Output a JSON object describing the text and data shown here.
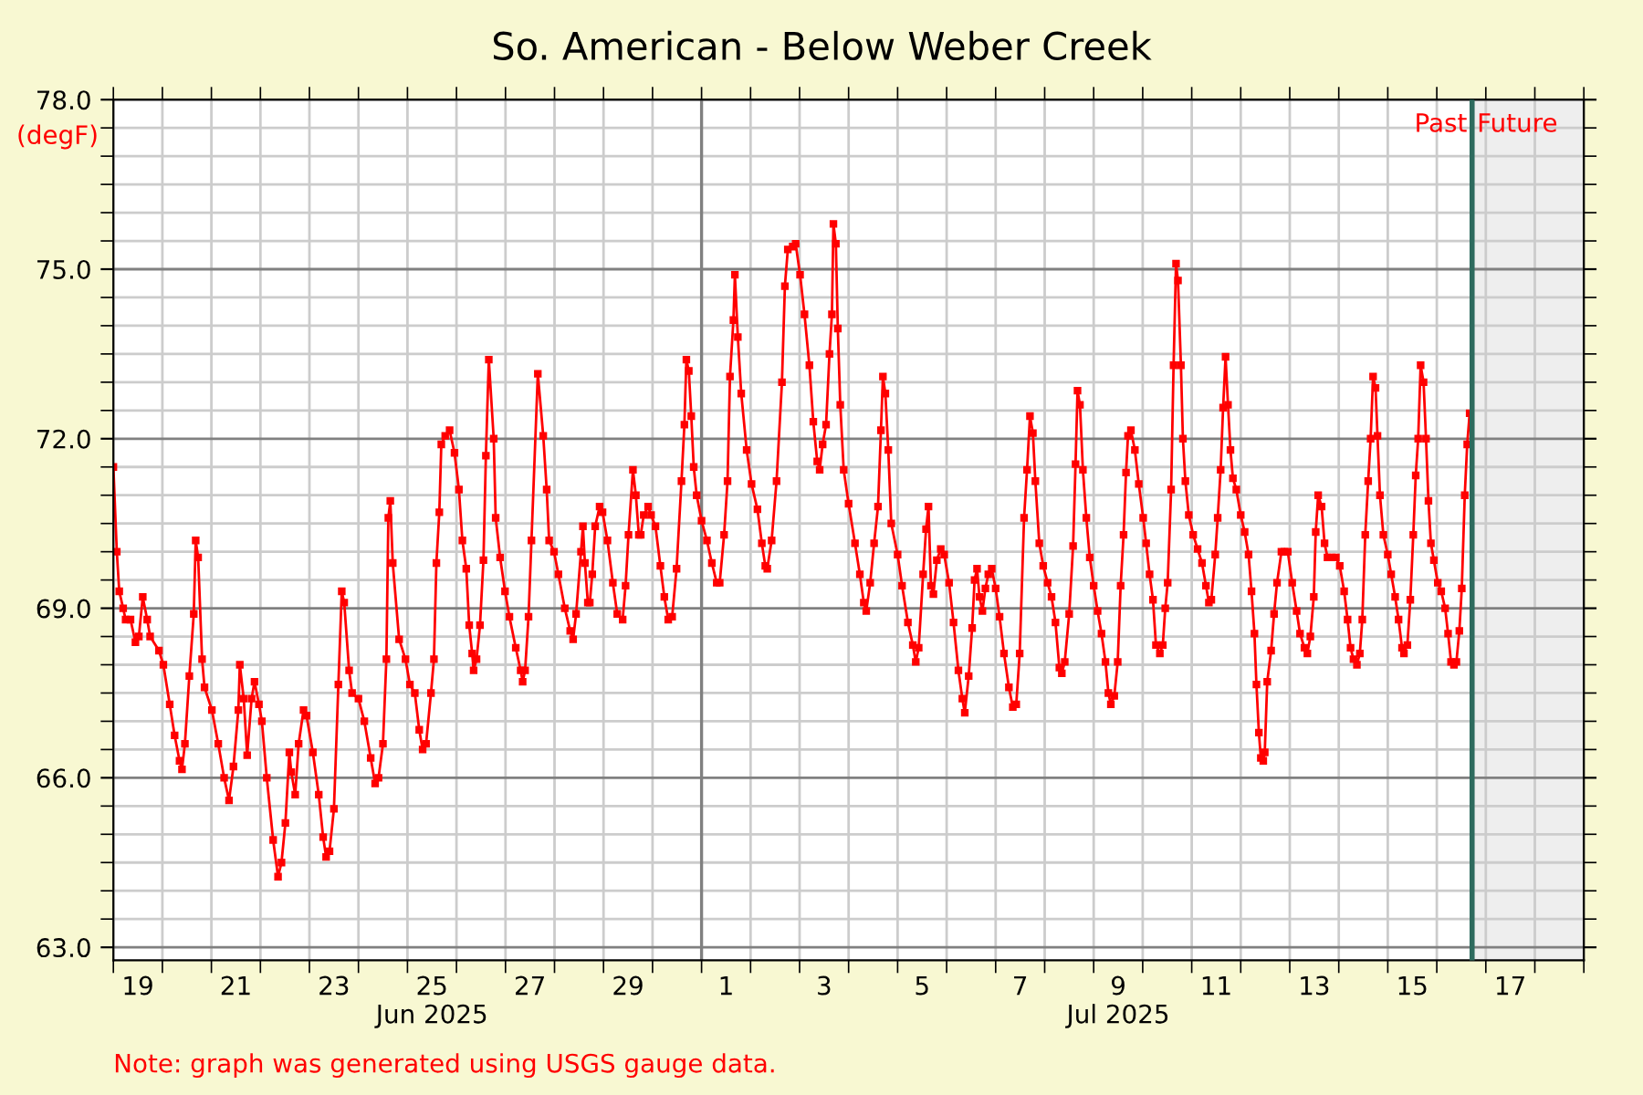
{
  "chart_data": {
    "type": "line",
    "title": "So. American - Below Weber Creek",
    "ylabel": "(degF)",
    "annotations": [
      "Note: graph was generated using USGS gauge data."
    ],
    "marker": "square",
    "line_style": "solid",
    "grid": true,
    "xlim": [
      "2025-06-19",
      "2025-07-19"
    ],
    "ylim": [
      62.77,
      78
    ],
    "xticks": [
      {
        "value": "2025-06-19",
        "label": null
      },
      {
        "value": "2025-06-20",
        "label": null
      },
      {
        "value": "2025-06-21",
        "label": null
      },
      {
        "value": "2025-06-22",
        "label": null
      },
      {
        "value": "2025-06-23",
        "label": null
      },
      {
        "value": "2025-06-24",
        "label": null
      },
      {
        "value": "2025-06-25",
        "label": null
      },
      {
        "value": "2025-06-26",
        "label": null
      },
      {
        "value": "2025-06-27",
        "label": null
      },
      {
        "value": "2025-06-28",
        "label": null
      },
      {
        "value": "2025-06-29",
        "label": null
      },
      {
        "value": "2025-06-30",
        "label": null
      },
      {
        "value": "2025-07-01",
        "label": null
      },
      {
        "value": "2025-07-02",
        "label": null
      },
      {
        "value": "2025-07-03",
        "label": null
      },
      {
        "value": "2025-07-04",
        "label": null
      },
      {
        "value": "2025-07-05",
        "label": null
      },
      {
        "value": "2025-07-06",
        "label": null
      },
      {
        "value": "2025-07-07",
        "label": null
      },
      {
        "value": "2025-07-08",
        "label": null
      },
      {
        "value": "2025-07-09",
        "label": null
      },
      {
        "value": "2025-07-10",
        "label": null
      },
      {
        "value": "2025-07-11",
        "label": null
      },
      {
        "value": "2025-07-12",
        "label": null
      },
      {
        "value": "2025-07-13",
        "label": null
      },
      {
        "value": "2025-07-14",
        "label": null
      },
      {
        "value": "2025-07-15",
        "label": null
      },
      {
        "value": "2025-07-16",
        "label": null
      },
      {
        "value": "2025-07-17",
        "label": null
      },
      {
        "value": "2025-07-18",
        "label": null
      },
      {
        "value": "2025-07-19",
        "label": null
      },
      {
        "value": "2025-06-19T12:00",
        "label": "19"
      },
      {
        "value": "2025-06-21T12:00",
        "label": "21"
      },
      {
        "value": "2025-06-23T12:00",
        "label": "23"
      },
      {
        "value": "2025-06-25T12:00",
        "label": "25\nJun 2025"
      },
      {
        "value": "2025-06-27T12:00",
        "label": "27"
      },
      {
        "value": "2025-06-29T12:00",
        "label": "29"
      },
      {
        "value": "2025-07-01T12:00",
        "label": "1"
      },
      {
        "value": "2025-07-03T12:00",
        "label": "3"
      },
      {
        "value": "2025-07-05T12:00",
        "label": "5"
      },
      {
        "value": "2025-07-07T12:00",
        "label": "7"
      },
      {
        "value": "2025-07-09T12:00",
        "label": "9\nJul 2025"
      },
      {
        "value": "2025-07-11T12:00",
        "label": "11"
      },
      {
        "value": "2025-07-13T12:00",
        "label": "13"
      },
      {
        "value": "2025-07-15T12:00",
        "label": "15"
      },
      {
        "value": "2025-07-17T12:00",
        "label": "17"
      }
    ],
    "yticks": [
      {
        "value": 63,
        "label": "63.0"
      },
      {
        "value": 63.5,
        "label": null
      },
      {
        "value": 64,
        "label": null
      },
      {
        "value": 64.5,
        "label": null
      },
      {
        "value": 65,
        "label": null
      },
      {
        "value": 65.5,
        "label": null
      },
      {
        "value": 66,
        "label": "66.0"
      },
      {
        "value": 66.5,
        "label": null
      },
      {
        "value": 67,
        "label": null
      },
      {
        "value": 67.5,
        "label": null
      },
      {
        "value": 68,
        "label": null
      },
      {
        "value": 68.5,
        "label": null
      },
      {
        "value": 69,
        "label": "69.0"
      },
      {
        "value": 69.5,
        "label": null
      },
      {
        "value": 70,
        "label": null
      },
      {
        "value": 70.5,
        "label": null
      },
      {
        "value": 71,
        "label": null
      },
      {
        "value": 71.5,
        "label": null
      },
      {
        "value": 72,
        "label": "72.0"
      },
      {
        "value": 72.5,
        "label": null
      },
      {
        "value": 73,
        "label": null
      },
      {
        "value": 73.5,
        "label": null
      },
      {
        "value": 74,
        "label": null
      },
      {
        "value": 74.5,
        "label": null
      },
      {
        "value": 75,
        "label": "75.0"
      },
      {
        "value": 75.5,
        "label": null
      },
      {
        "value": 76,
        "label": null
      },
      {
        "value": 76.5,
        "label": null
      },
      {
        "value": 77,
        "label": null
      },
      {
        "value": 77.5,
        "label": null
      },
      {
        "value": 78,
        "label": "78.0"
      }
    ],
    "ref_lines": [
      {
        "axis": "x",
        "value": "2025-07-01",
        "color": "#808080"
      },
      {
        "axis": "x",
        "value": "2025-07-16T17:17",
        "label": "Past",
        "color": "#2e6b5e"
      }
    ],
    "bands": [
      {
        "axis": "x",
        "from": "2025-07-16T17:17",
        "to": "2025-07-19",
        "label": "Future",
        "color": "#eeeeee"
      }
    ],
    "series": [
      {
        "color": "#ff0000",
        "x": [
          "2025-06-19T00:00",
          "2025-06-19T01:41",
          "2025-06-19T02:53",
          "2025-06-19T04:48",
          "2025-06-19T06:00",
          "2025-06-19T08:24",
          "2025-06-19T10:48",
          "2025-06-19T12:29",
          "2025-06-19T14:24",
          "2025-06-19T16:34",
          "2025-06-19T18:00",
          "2025-06-19T22:19",
          "2025-06-20T00:29",
          "2025-06-20T03:36",
          "2025-06-20T06:00",
          "2025-06-20T08:24",
          "2025-06-20T09:36",
          "2025-06-20T11:02",
          "2025-06-20T13:12",
          "2025-06-20T15:22",
          "2025-06-20T16:19",
          "2025-06-20T17:31",
          "2025-06-20T19:26",
          "2025-06-20T20:38",
          "2025-06-21T00:14",
          "2025-06-21T03:22",
          "2025-06-21T06:14",
          "2025-06-21T08:38",
          "2025-06-21T10:48",
          "2025-06-21T13:12",
          "2025-06-21T13:55",
          "2025-06-21T15:50",
          "2025-06-21T17:31",
          "2025-06-21T19:41",
          "2025-06-21T21:07",
          "2025-06-21T23:17",
          "2025-06-22T00:43",
          "2025-06-22T03:07",
          "2025-06-22T06:14",
          "2025-06-22T08:38",
          "2025-06-22T10:19",
          "2025-06-22T12:14",
          "2025-06-22T14:10",
          "2025-06-22T15:07",
          "2025-06-22T17:02",
          "2025-06-22T18:43",
          "2025-06-22T21:07",
          "2025-06-22T22:34",
          "2025-06-23T01:41",
          "2025-06-23T04:34",
          "2025-06-23T06:43",
          "2025-06-23T08:10",
          "2025-06-23T09:50",
          "2025-06-23T12:00",
          "2025-06-23T14:10",
          "2025-06-23T15:50",
          "2025-06-23T17:02",
          "2025-06-23T19:26",
          "2025-06-23T20:53",
          "2025-06-24T00:00",
          "2025-06-24T02:53",
          "2025-06-24T06:00",
          "2025-06-24T08:10",
          "2025-06-24T09:50",
          "2025-06-24T12:00",
          "2025-06-24T13:41",
          "2025-06-24T14:38",
          "2025-06-24T15:36",
          "2025-06-24T16:48",
          "2025-06-24T19:55",
          "2025-06-24T23:02",
          "2025-06-25T01:12",
          "2025-06-25T03:36",
          "2025-06-25T05:46",
          "2025-06-25T07:26",
          "2025-06-25T09:07",
          "2025-06-25T11:31",
          "2025-06-25T12:58",
          "2025-06-25T14:10",
          "2025-06-25T15:36",
          "2025-06-25T16:34",
          "2025-06-25T18:29",
          "2025-06-25T20:38",
          "2025-06-25T23:02",
          "2025-06-26T01:12",
          "2025-06-26T02:53",
          "2025-06-26T04:48",
          "2025-06-26T06:14",
          "2025-06-26T07:41",
          "2025-06-26T08:24",
          "2025-06-26T09:50",
          "2025-06-26T11:31",
          "2025-06-26T13:12",
          "2025-06-26T14:24",
          "2025-06-26T15:50",
          "2025-06-26T18:14",
          "2025-06-26T19:12",
          "2025-06-26T21:22",
          "2025-06-26T23:46",
          "2025-06-27T01:55",
          "2025-06-27T05:02",
          "2025-06-27T07:26",
          "2025-06-27T08:24",
          "2025-06-27T09:36",
          "2025-06-27T11:17",
          "2025-06-27T12:43",
          "2025-06-27T15:50",
          "2025-06-27T18:29",
          "2025-06-27T20:10",
          "2025-06-27T21:22",
          "2025-06-27T23:46",
          "2025-06-28T01:55",
          "2025-06-28T05:02",
          "2025-06-28T07:41",
          "2025-06-28T09:07",
          "2025-06-28T10:34",
          "2025-06-28T12:58",
          "2025-06-28T13:55",
          "2025-06-28T14:53",
          "2025-06-28T16:19",
          "2025-06-28T17:17",
          "2025-06-28T18:29",
          "2025-06-28T19:55",
          "2025-06-28T22:05",
          "2025-06-28T23:31",
          "2025-06-29T01:55",
          "2025-06-29T04:34",
          "2025-06-29T06:43",
          "2025-06-29T09:22",
          "2025-06-29T10:48",
          "2025-06-29T12:14",
          "2025-06-29T14:24",
          "2025-06-29T15:50",
          "2025-06-29T17:17",
          "2025-06-29T18:14",
          "2025-06-29T19:41",
          "2025-06-29T21:50",
          "2025-06-29T23:17",
          "2025-06-30T01:26",
          "2025-06-30T03:50",
          "2025-06-30T05:46",
          "2025-06-30T07:41",
          "2025-06-30T09:36",
          "2025-06-30T11:46",
          "2025-06-30T14:10",
          "2025-06-30T15:36",
          "2025-06-30T16:34",
          "2025-06-30T17:46",
          "2025-06-30T18:58",
          "2025-06-30T20:10",
          "2025-06-30T21:36",
          "2025-07-01T00:00",
          "2025-07-01T02:38",
          "2025-07-01T05:02",
          "2025-07-01T07:26",
          "2025-07-01T08:53",
          "2025-07-01T11:02",
          "2025-07-01T12:43",
          "2025-07-01T13:55",
          "2025-07-01T15:36",
          "2025-07-01T16:19",
          "2025-07-01T17:46",
          "2025-07-01T19:26",
          "2025-07-01T22:05",
          "2025-07-02T00:29",
          "2025-07-02T03:22",
          "2025-07-02T05:31",
          "2025-07-02T07:12",
          "2025-07-02T08:10",
          "2025-07-02T10:19",
          "2025-07-02T12:43",
          "2025-07-02T15:22",
          "2025-07-02T16:48",
          "2025-07-02T18:14",
          "2025-07-02T20:38",
          "2025-07-02T22:05",
          "2025-07-03T00:14",
          "2025-07-03T02:24",
          "2025-07-03T04:48",
          "2025-07-03T06:43",
          "2025-07-03T08:38",
          "2025-07-03T09:50",
          "2025-07-03T11:17",
          "2025-07-03T12:58",
          "2025-07-03T14:38",
          "2025-07-03T15:50",
          "2025-07-03T16:34",
          "2025-07-03T17:46",
          "2025-07-03T18:43",
          "2025-07-03T19:55",
          "2025-07-03T21:36",
          "2025-07-04T00:00",
          "2025-07-04T03:07",
          "2025-07-04T05:31",
          "2025-07-04T07:26",
          "2025-07-04T08:38",
          "2025-07-04T10:34",
          "2025-07-04T12:29",
          "2025-07-04T14:24",
          "2025-07-04T15:50",
          "2025-07-04T16:48",
          "2025-07-04T18:00",
          "2025-07-04T19:26",
          "2025-07-04T20:53",
          "2025-07-05T00:00",
          "2025-07-05T02:10",
          "2025-07-05T05:02",
          "2025-07-05T07:26",
          "2025-07-05T08:53",
          "2025-07-05T10:19",
          "2025-07-05T12:29",
          "2025-07-05T13:55",
          "2025-07-05T15:07",
          "2025-07-05T16:19",
          "2025-07-05T17:31",
          "2025-07-05T19:12",
          "2025-07-05T21:07",
          "2025-07-05T22:48",
          "2025-07-06T01:12",
          "2025-07-06T03:22",
          "2025-07-06T05:46",
          "2025-07-06T07:41",
          "2025-07-06T08:53",
          "2025-07-06T10:48",
          "2025-07-06T12:29",
          "2025-07-06T13:41",
          "2025-07-06T14:53",
          "2025-07-06T16:05",
          "2025-07-06T17:31",
          "2025-07-06T18:58",
          "2025-07-06T20:24",
          "2025-07-06T22:05",
          "2025-07-07T00:00",
          "2025-07-07T01:55",
          "2025-07-07T04:05",
          "2025-07-07T06:29",
          "2025-07-07T08:24",
          "2025-07-07T10:05",
          "2025-07-07T11:46",
          "2025-07-07T13:55",
          "2025-07-07T15:22",
          "2025-07-07T16:48",
          "2025-07-07T18:14",
          "2025-07-07T19:26",
          "2025-07-07T21:22",
          "2025-07-07T23:17",
          "2025-07-08T01:26",
          "2025-07-08T03:22",
          "2025-07-08T05:17",
          "2025-07-08T07:12",
          "2025-07-08T08:24",
          "2025-07-08T09:50",
          "2025-07-08T12:00",
          "2025-07-08T13:55",
          "2025-07-08T15:07",
          "2025-07-08T16:05",
          "2025-07-08T17:17",
          "2025-07-08T18:43",
          "2025-07-08T20:24",
          "2025-07-08T22:05",
          "2025-07-09T00:00",
          "2025-07-09T01:55",
          "2025-07-09T03:50",
          "2025-07-09T05:46",
          "2025-07-09T07:12",
          "2025-07-09T08:24",
          "2025-07-09T10:05",
          "2025-07-09T11:46",
          "2025-07-09T13:12",
          "2025-07-09T14:38",
          "2025-07-09T15:50",
          "2025-07-09T16:48",
          "2025-07-09T18:14",
          "2025-07-09T20:10",
          "2025-07-09T22:05",
          "2025-07-10T00:14",
          "2025-07-10T01:41",
          "2025-07-10T03:22",
          "2025-07-10T05:02",
          "2025-07-10T06:29",
          "2025-07-10T08:24",
          "2025-07-10T09:50",
          "2025-07-10T11:02",
          "2025-07-10T12:14",
          "2025-07-10T13:55",
          "2025-07-10T15:07",
          "2025-07-10T16:19",
          "2025-07-10T17:17",
          "2025-07-10T18:43",
          "2025-07-10T19:41",
          "2025-07-10T20:53",
          "2025-07-10T22:34",
          "2025-07-11T00:43",
          "2025-07-11T02:53",
          "2025-07-11T05:02",
          "2025-07-11T06:58",
          "2025-07-11T08:24",
          "2025-07-11T09:36",
          "2025-07-11T11:31",
          "2025-07-11T12:43",
          "2025-07-11T14:10",
          "2025-07-11T15:22",
          "2025-07-11T16:34",
          "2025-07-11T17:46",
          "2025-07-11T18:58",
          "2025-07-11T20:10",
          "2025-07-11T21:50",
          "2025-07-12T00:00",
          "2025-07-12T01:55",
          "2025-07-12T03:50",
          "2025-07-12T05:17",
          "2025-07-12T06:43",
          "2025-07-12T07:41",
          "2025-07-12T08:53",
          "2025-07-12T09:50",
          "2025-07-12T11:02",
          "2025-07-12T11:46",
          "2025-07-12T12:58",
          "2025-07-12T14:53",
          "2025-07-12T16:19",
          "2025-07-12T17:46",
          "2025-07-12T19:55",
          "2025-07-12T21:22",
          "2025-07-12T23:02",
          "2025-07-13T01:12",
          "2025-07-13T03:22",
          "2025-07-13T05:02",
          "2025-07-13T07:12",
          "2025-07-13T08:38",
          "2025-07-13T10:05",
          "2025-07-13T11:46",
          "2025-07-13T12:43",
          "2025-07-13T13:55",
          "2025-07-13T15:36",
          "2025-07-13T17:02",
          "2025-07-13T18:29",
          "2025-07-13T20:38",
          "2025-07-13T22:34",
          "2025-07-14T00:29",
          "2025-07-14T02:38",
          "2025-07-14T04:19",
          "2025-07-14T05:46",
          "2025-07-14T07:12",
          "2025-07-14T08:53",
          "2025-07-14T10:19",
          "2025-07-14T11:31",
          "2025-07-14T12:58",
          "2025-07-14T14:24",
          "2025-07-14T15:36",
          "2025-07-14T16:48",
          "2025-07-14T18:00",
          "2025-07-14T18:58",
          "2025-07-14T20:10",
          "2025-07-14T21:50",
          "2025-07-15T00:00",
          "2025-07-15T01:41",
          "2025-07-15T03:36",
          "2025-07-15T05:17",
          "2025-07-15T06:58",
          "2025-07-15T07:55",
          "2025-07-15T09:36",
          "2025-07-15T11:02",
          "2025-07-15T12:29",
          "2025-07-15T13:41",
          "2025-07-15T14:53",
          "2025-07-15T16:05",
          "2025-07-15T17:31",
          "2025-07-15T18:43",
          "2025-07-15T19:55",
          "2025-07-15T21:07",
          "2025-07-15T22:34",
          "2025-07-16T00:29",
          "2025-07-16T02:10",
          "2025-07-16T04:05",
          "2025-07-16T05:31",
          "2025-07-16T06:58",
          "2025-07-16T08:24",
          "2025-07-16T09:36",
          "2025-07-16T11:02",
          "2025-07-16T12:14",
          "2025-07-16T13:41",
          "2025-07-16T14:53",
          "2025-07-16T16:05"
        ],
        "values": [
          71.5,
          70.0,
          69.3,
          69.0,
          68.8,
          68.8,
          68.4,
          68.5,
          69.2,
          68.8,
          68.5,
          68.25,
          68.0,
          67.3,
          66.75,
          66.3,
          66.15,
          66.6,
          67.8,
          68.9,
          70.2,
          69.9,
          68.1,
          67.6,
          67.2,
          66.6,
          66.0,
          65.6,
          66.2,
          67.2,
          68.0,
          67.4,
          66.4,
          67.4,
          67.7,
          67.3,
          67.0,
          66.0,
          64.9,
          64.25,
          64.5,
          65.2,
          66.45,
          66.1,
          65.7,
          66.6,
          67.2,
          67.1,
          66.45,
          65.7,
          64.95,
          64.6,
          64.7,
          65.45,
          67.65,
          69.3,
          69.1,
          67.9,
          67.5,
          67.4,
          67.0,
          66.35,
          65.9,
          66.0,
          66.6,
          68.1,
          70.6,
          70.9,
          69.8,
          68.45,
          68.1,
          67.65,
          67.5,
          66.85,
          66.5,
          66.6,
          67.5,
          68.1,
          69.8,
          70.7,
          71.9,
          72.05,
          72.15,
          71.75,
          71.1,
          70.2,
          69.7,
          68.7,
          68.2,
          67.9,
          68.1,
          68.7,
          69.85,
          71.7,
          73.4,
          72.0,
          70.6,
          69.9,
          69.3,
          68.85,
          68.3,
          67.9,
          67.7,
          67.9,
          68.85,
          70.2,
          73.15,
          72.05,
          71.1,
          70.2,
          70.0,
          69.6,
          69.0,
          68.6,
          68.45,
          68.9,
          70.0,
          70.45,
          69.8,
          69.1,
          69.1,
          69.6,
          70.45,
          70.8,
          70.7,
          70.2,
          69.45,
          68.9,
          68.8,
          69.4,
          70.3,
          71.45,
          71.0,
          70.3,
          70.3,
          70.65,
          70.8,
          70.65,
          70.45,
          69.75,
          69.2,
          68.8,
          68.85,
          69.7,
          71.25,
          72.25,
          73.4,
          73.2,
          72.4,
          71.5,
          71.0,
          70.55,
          70.2,
          69.8,
          69.45,
          69.45,
          70.3,
          71.25,
          73.1,
          74.1,
          74.9,
          73.8,
          72.8,
          71.8,
          71.2,
          70.75,
          70.15,
          69.75,
          69.7,
          70.2,
          71.25,
          73.0,
          74.7,
          75.35,
          75.4,
          75.45,
          74.9,
          74.2,
          73.3,
          72.3,
          71.6,
          71.45,
          71.9,
          72.25,
          73.5,
          74.2,
          75.8,
          75.45,
          73.95,
          72.6,
          71.45,
          70.85,
          70.15,
          69.6,
          69.1,
          68.95,
          69.45,
          70.15,
          70.8,
          72.15,
          73.1,
          72.8,
          71.8,
          70.5,
          69.95,
          69.4,
          68.75,
          68.35,
          68.05,
          68.3,
          69.6,
          70.4,
          70.8,
          69.4,
          69.25,
          69.85,
          70.05,
          69.95,
          69.45,
          68.75,
          67.9,
          67.4,
          67.15,
          67.8,
          68.65,
          69.5,
          69.7,
          69.2,
          68.95,
          69.35,
          69.6,
          69.7,
          69.35,
          68.85,
          68.2,
          67.6,
          67.25,
          67.3,
          68.2,
          70.6,
          71.45,
          72.4,
          72.1,
          71.25,
          70.15,
          69.75,
          69.45,
          69.2,
          68.75,
          67.95,
          67.85,
          68.05,
          68.9,
          70.1,
          71.55,
          72.85,
          72.6,
          71.45,
          70.6,
          69.9,
          69.4,
          68.95,
          68.55,
          68.05,
          67.5,
          67.3,
          67.45,
          68.05,
          69.4,
          70.3,
          71.4,
          72.05,
          72.15,
          71.8,
          71.2,
          70.6,
          70.15,
          69.6,
          69.15,
          68.35,
          68.2,
          68.35,
          69.0,
          69.45,
          71.1,
          73.3,
          75.1,
          74.8,
          73.3,
          72.0,
          71.25,
          70.65,
          70.3,
          70.05,
          69.8,
          69.4,
          69.1,
          69.15,
          69.95,
          70.6,
          71.45,
          72.55,
          73.45,
          72.6,
          71.8,
          71.3,
          71.1,
          70.65,
          70.35,
          69.95,
          69.3,
          68.55,
          67.65,
          66.8,
          66.35,
          66.3,
          66.45,
          67.7,
          68.25,
          68.9,
          69.45,
          70.0,
          70.0,
          70.0,
          69.45,
          68.95,
          68.55,
          68.3,
          68.2,
          68.5,
          69.2,
          70.35,
          71.0,
          70.8,
          70.15,
          69.9,
          69.9,
          69.9,
          69.75,
          69.3,
          68.8,
          68.3,
          68.1,
          68.0,
          68.2,
          68.8,
          70.3,
          71.25,
          72.0,
          73.1,
          72.9,
          72.05,
          71.0,
          70.3,
          69.95,
          69.6,
          69.2,
          68.8,
          68.3,
          68.2,
          68.35,
          69.15,
          70.3,
          71.35,
          72.0,
          73.3,
          73.0,
          72.0,
          70.9,
          70.15,
          69.85,
          69.45,
          69.3,
          69.0,
          68.55,
          68.05,
          68.0,
          68.05,
          68.6,
          69.35,
          71.0,
          71.9,
          72.45
        ]
      }
    ]
  }
}
